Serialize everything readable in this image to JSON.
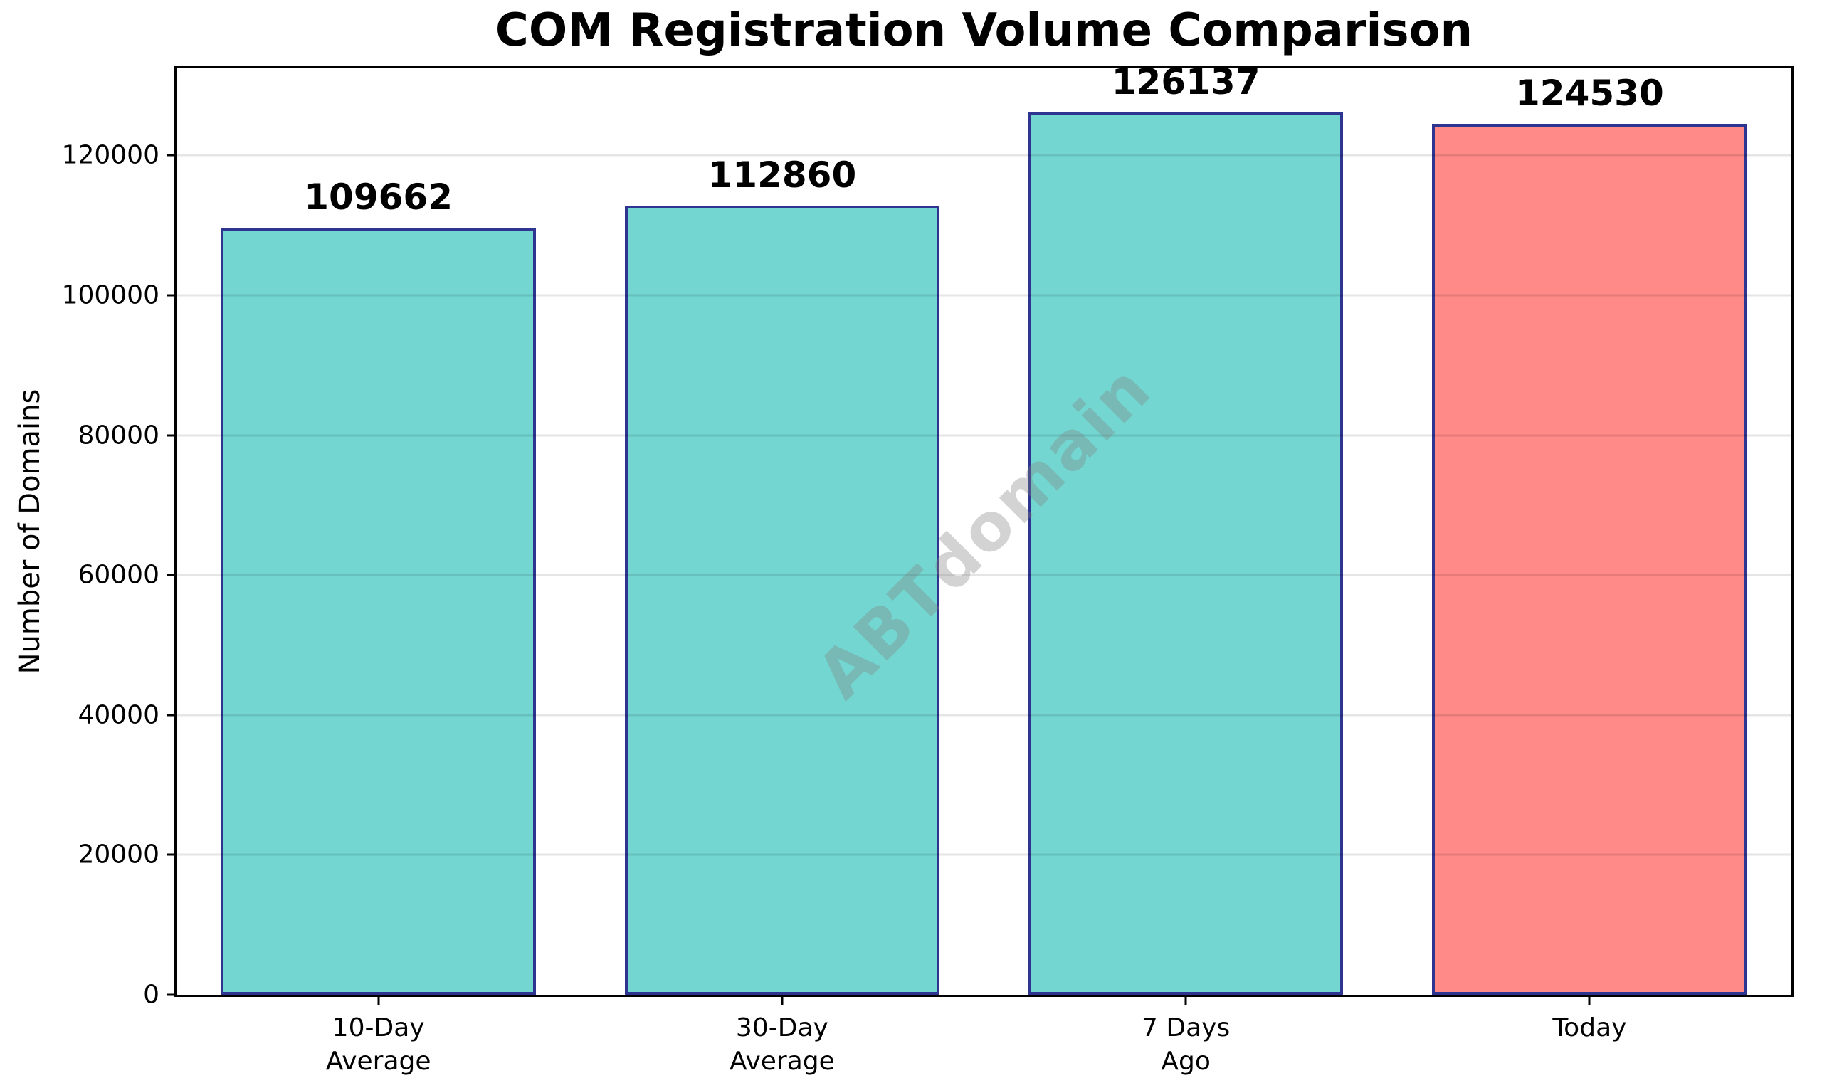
{
  "chart_data": {
    "type": "bar",
    "title": "COM Registration Volume Comparison",
    "xlabel": "",
    "ylabel": "Number of Domains",
    "categories": [
      "10-Day\nAverage",
      "30-Day\nAverage",
      "7 Days\nAgo",
      "Today"
    ],
    "values": [
      109662,
      112860,
      126137,
      124530
    ],
    "value_labels": [
      "109662",
      "112860",
      "126137",
      "124530"
    ],
    "bar_colors": [
      "#73D6D1",
      "#73D6D1",
      "#73D6D1",
      "#FF8A87"
    ],
    "bar_edge_color": "#2D3590",
    "ylim": [
      0,
      132444
    ],
    "yticks": [
      0,
      20000,
      40000,
      60000,
      80000,
      100000,
      120000
    ],
    "grid": "horizontal-light-gray",
    "legend": "none",
    "watermark": "ABTdomain"
  }
}
